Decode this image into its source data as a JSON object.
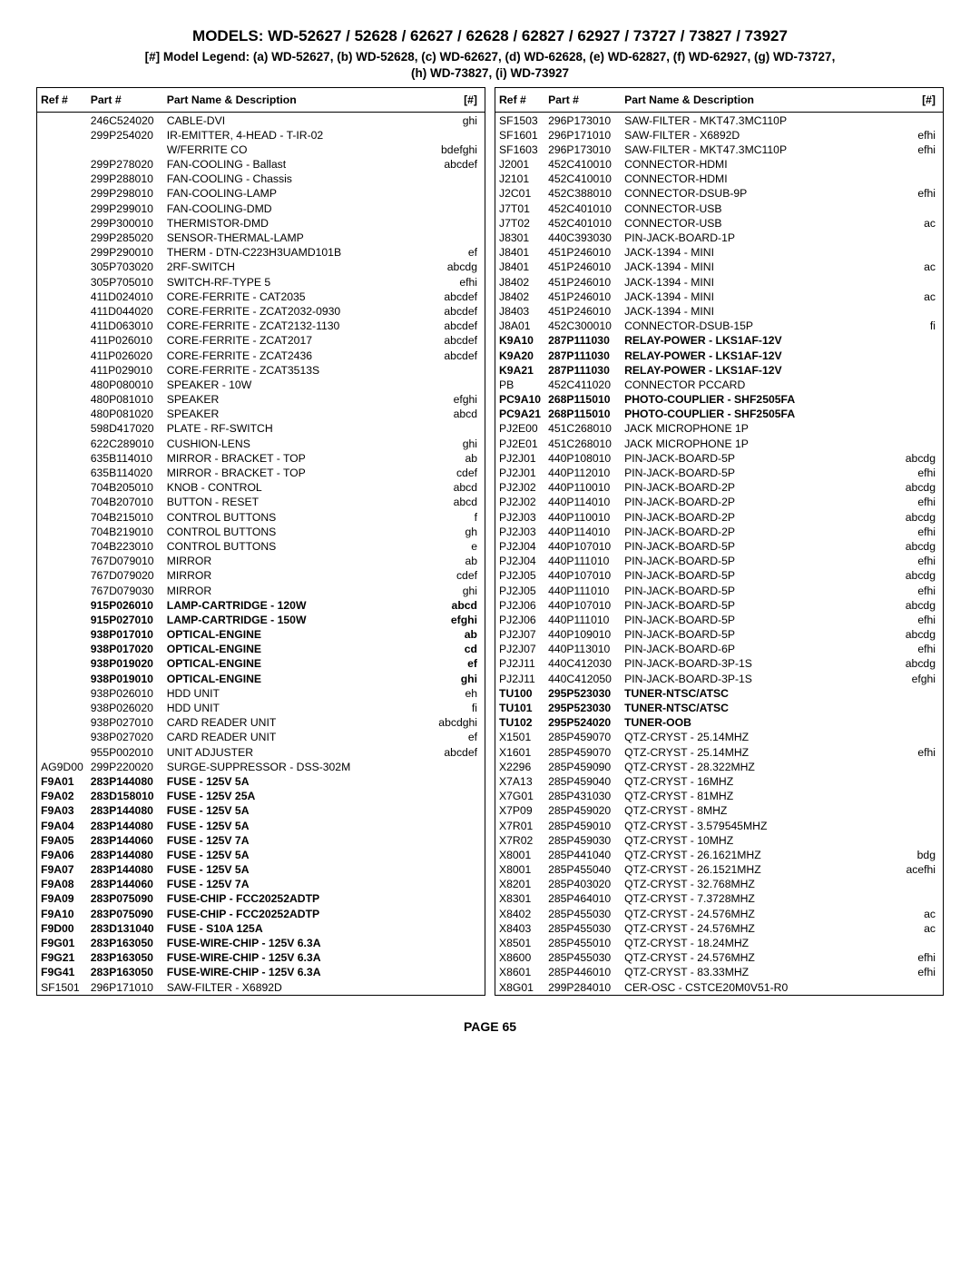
{
  "title": "MODELS: WD-52627 / 52628 / 62627 / 62628 / 62827 / 62927 / 73727 / 73827 / 73927",
  "legend_line1": "[#] Model Legend:  (a) WD-52627, (b) WD-52628, (c) WD-62627, (d) WD-62628, (e) WD-62827, (f) WD-62927, (g) WD-73727,",
  "legend_line2": "(h) WD-73827, (i) WD-73927",
  "headers": {
    "ref": "Ref #",
    "part": "Part #",
    "desc": "Part Name & Description",
    "tag": "[#]"
  },
  "footer": "PAGE 65",
  "left_rows": [
    {
      "ref": "",
      "part": "246C524020",
      "desc": "CABLE-DVI",
      "tag": "ghi"
    },
    {
      "ref": "",
      "part": "299P254020",
      "desc": "IR-EMITTER, 4-HEAD - T-IR-02",
      "tag": ""
    },
    {
      "ref": "",
      "part": "",
      "desc": "W/FERRITE CO",
      "tag": "bdefghi"
    },
    {
      "ref": "",
      "part": "299P278020",
      "desc": "FAN-COOLING - Ballast",
      "tag": "abcdef"
    },
    {
      "ref": "",
      "part": "299P288010",
      "desc": "FAN-COOLING - Chassis",
      "tag": ""
    },
    {
      "ref": "",
      "part": "299P298010",
      "desc": "FAN-COOLING-LAMP",
      "tag": ""
    },
    {
      "ref": "",
      "part": "299P299010",
      "desc": "FAN-COOLING-DMD",
      "tag": ""
    },
    {
      "ref": "",
      "part": "299P300010",
      "desc": "THERMISTOR-DMD",
      "tag": ""
    },
    {
      "ref": "",
      "part": "299P285020",
      "desc": "SENSOR-THERMAL-LAMP",
      "tag": ""
    },
    {
      "ref": "",
      "part": "299P290010",
      "desc": "THERM - DTN-C223H3UAMD101B",
      "tag": "ef"
    },
    {
      "ref": "",
      "part": "305P703020",
      "desc": "2RF-SWITCH",
      "tag": "abcdg"
    },
    {
      "ref": "",
      "part": "305P705010",
      "desc": "SWITCH-RF-TYPE 5",
      "tag": "efhi"
    },
    {
      "ref": "",
      "part": "411D024010",
      "desc": "CORE-FERRITE - CAT2035",
      "tag": "abcdef"
    },
    {
      "ref": "",
      "part": "411D044020",
      "desc": "CORE-FERRITE - ZCAT2032-0930",
      "tag": "abcdef"
    },
    {
      "ref": "",
      "part": "411D063010",
      "desc": "CORE-FERRITE - ZCAT2132-1130",
      "tag": "abcdef"
    },
    {
      "ref": "",
      "part": "411P026010",
      "desc": "CORE-FERRITE - ZCAT2017",
      "tag": "abcdef"
    },
    {
      "ref": "",
      "part": "411P026020",
      "desc": "CORE-FERRITE - ZCAT2436",
      "tag": "abcdef"
    },
    {
      "ref": "",
      "part": "411P029010",
      "desc": "CORE-FERRITE - ZCAT3513S",
      "tag": ""
    },
    {
      "ref": "",
      "part": "480P080010",
      "desc": "SPEAKER - 10W",
      "tag": ""
    },
    {
      "ref": "",
      "part": "480P081010",
      "desc": "SPEAKER",
      "tag": "efghi"
    },
    {
      "ref": "",
      "part": "480P081020",
      "desc": "SPEAKER",
      "tag": "abcd"
    },
    {
      "ref": "",
      "part": "598D417020",
      "desc": "PLATE - RF-SWITCH",
      "tag": ""
    },
    {
      "ref": "",
      "part": "622C289010",
      "desc": "CUSHION-LENS",
      "tag": "ghi"
    },
    {
      "ref": "",
      "part": "635B114010",
      "desc": "MIRROR - BRACKET - TOP",
      "tag": "ab"
    },
    {
      "ref": "",
      "part": "635B114020",
      "desc": "MIRROR - BRACKET - TOP",
      "tag": "cdef"
    },
    {
      "ref": "",
      "part": "704B205010",
      "desc": "KNOB -  CONTROL",
      "tag": "abcd"
    },
    {
      "ref": "",
      "part": "704B207010",
      "desc": "BUTTON - RESET",
      "tag": "abcd"
    },
    {
      "ref": "",
      "part": "704B215010",
      "desc": "CONTROL BUTTONS",
      "tag": "f"
    },
    {
      "ref": "",
      "part": "704B219010",
      "desc": "CONTROL BUTTONS",
      "tag": "gh"
    },
    {
      "ref": "",
      "part": "704B223010",
      "desc": "CONTROL BUTTONS",
      "tag": "e"
    },
    {
      "ref": "",
      "part": "767D079010",
      "desc": "MIRROR",
      "tag": "ab"
    },
    {
      "ref": "",
      "part": "767D079020",
      "desc": "MIRROR",
      "tag": "cdef"
    },
    {
      "ref": "",
      "part": "767D079030",
      "desc": "MIRROR",
      "tag": "ghi"
    },
    {
      "ref": "",
      "part": "915P026010",
      "desc": "LAMP-CARTRIDGE - 120W",
      "tag": "abcd",
      "bold": true
    },
    {
      "ref": "",
      "part": "915P027010",
      "desc": "LAMP-CARTRIDGE - 150W",
      "tag": "efghi",
      "bold": true
    },
    {
      "ref": "",
      "part": "938P017010",
      "desc": "OPTICAL-ENGINE",
      "tag": "ab",
      "bold": true
    },
    {
      "ref": "",
      "part": "938P017020",
      "desc": "OPTICAL-ENGINE",
      "tag": "cd",
      "bold": true
    },
    {
      "ref": "",
      "part": "938P019020",
      "desc": "OPTICAL-ENGINE",
      "tag": "ef",
      "bold": true
    },
    {
      "ref": "",
      "part": "938P019010",
      "desc": "OPTICAL-ENGINE",
      "tag": "ghi",
      "bold": true
    },
    {
      "ref": "",
      "part": "938P026010",
      "desc": "HDD UNIT",
      "tag": "eh"
    },
    {
      "ref": "",
      "part": "938P026020",
      "desc": "HDD UNIT",
      "tag": "fi"
    },
    {
      "ref": "",
      "part": "938P027010",
      "desc": "CARD READER UNIT",
      "tag": "abcdghi"
    },
    {
      "ref": "",
      "part": "938P027020",
      "desc": "CARD READER UNIT",
      "tag": "ef"
    },
    {
      "ref": "",
      "part": "955P002010",
      "desc": "UNIT ADJUSTER",
      "tag": "abcdef"
    },
    {
      "ref": "AG9D00",
      "part": "299P220020",
      "desc": "SURGE-SUPPRESSOR - DSS-302M",
      "tag": ""
    },
    {
      "ref": "F9A01",
      "part": "283P144080",
      "desc": "FUSE - 125V 5A",
      "tag": "",
      "bold": true
    },
    {
      "ref": "F9A02",
      "part": "283D158010",
      "desc": "FUSE - 125V 25A",
      "tag": "",
      "bold": true
    },
    {
      "ref": "F9A03",
      "part": "283P144080",
      "desc": "FUSE - 125V 5A",
      "tag": "",
      "bold": true
    },
    {
      "ref": "F9A04",
      "part": "283P144080",
      "desc": "FUSE - 125V 5A",
      "tag": "",
      "bold": true
    },
    {
      "ref": "F9A05",
      "part": "283P144060",
      "desc": "FUSE - 125V 7A",
      "tag": "",
      "bold": true
    },
    {
      "ref": "F9A06",
      "part": "283P144080",
      "desc": "FUSE - 125V 5A",
      "tag": "",
      "bold": true
    },
    {
      "ref": "F9A07",
      "part": "283P144080",
      "desc": "FUSE - 125V 5A",
      "tag": "",
      "bold": true
    },
    {
      "ref": "F9A08",
      "part": "283P144060",
      "desc": "FUSE - 125V 7A",
      "tag": "",
      "bold": true
    },
    {
      "ref": "F9A09",
      "part": "283P075090",
      "desc": "FUSE-CHIP -  FCC20252ADTP",
      "tag": "",
      "bold": true
    },
    {
      "ref": "F9A10",
      "part": "283P075090",
      "desc": "FUSE-CHIP -  FCC20252ADTP",
      "tag": "",
      "bold": true
    },
    {
      "ref": "F9D00",
      "part": "283D131040",
      "desc": "FUSE - S10A 125A",
      "tag": "",
      "bold": true
    },
    {
      "ref": "F9G01",
      "part": "283P163050",
      "desc": "FUSE-WIRE-CHIP - 125V 6.3A",
      "tag": "",
      "bold": true
    },
    {
      "ref": "F9G21",
      "part": "283P163050",
      "desc": "FUSE-WIRE-CHIP - 125V 6.3A",
      "tag": "",
      "bold": true
    },
    {
      "ref": "F9G41",
      "part": "283P163050",
      "desc": "FUSE-WIRE-CHIP - 125V 6.3A",
      "tag": "",
      "bold": true
    },
    {
      "ref": "SF1501",
      "part": "296P171010",
      "desc": "SAW-FILTER - X6892D",
      "tag": ""
    }
  ],
  "right_rows": [
    {
      "ref": "SF1503",
      "part": "296P173010",
      "desc": "SAW-FILTER - MKT47.3MC110P",
      "tag": ""
    },
    {
      "ref": "SF1601",
      "part": "296P171010",
      "desc": "SAW-FILTER - X6892D",
      "tag": "efhi"
    },
    {
      "ref": "SF1603",
      "part": "296P173010",
      "desc": "SAW-FILTER - MKT47.3MC110P",
      "tag": "efhi"
    },
    {
      "ref": "J2001",
      "part": "452C410010",
      "desc": "CONNECTOR-HDMI",
      "tag": ""
    },
    {
      "ref": "J2101",
      "part": "452C410010",
      "desc": "CONNECTOR-HDMI",
      "tag": ""
    },
    {
      "ref": "J2C01",
      "part": "452C388010",
      "desc": "CONNECTOR-DSUB-9P",
      "tag": "efhi"
    },
    {
      "ref": "J7T01",
      "part": "452C401010",
      "desc": "CONNECTOR-USB",
      "tag": ""
    },
    {
      "ref": "J7T02",
      "part": "452C401010",
      "desc": "CONNECTOR-USB",
      "tag": "ac"
    },
    {
      "ref": "J8301",
      "part": "440C393030",
      "desc": "PIN-JACK-BOARD-1P",
      "tag": ""
    },
    {
      "ref": "J8401",
      "part": "451P246010",
      "desc": "JACK-1394 - MINI",
      "tag": ""
    },
    {
      "ref": "J8401",
      "part": "451P246010",
      "desc": "JACK-1394 - MINI",
      "tag": "ac"
    },
    {
      "ref": "J8402",
      "part": "451P246010",
      "desc": "JACK-1394 - MINI",
      "tag": ""
    },
    {
      "ref": "J8402",
      "part": "451P246010",
      "desc": "JACK-1394 - MINI",
      "tag": "ac"
    },
    {
      "ref": "J8403",
      "part": "451P246010",
      "desc": "JACK-1394 - MINI",
      "tag": ""
    },
    {
      "ref": "J8A01",
      "part": "452C300010",
      "desc": "CONNECTOR-DSUB-15P",
      "tag": "fi"
    },
    {
      "ref": "K9A10",
      "part": "287P111030",
      "desc": "RELAY-POWER - LKS1AF-12V",
      "tag": "",
      "bold": true
    },
    {
      "ref": "K9A20",
      "part": "287P111030",
      "desc": "RELAY-POWER - LKS1AF-12V",
      "tag": "",
      "bold": true
    },
    {
      "ref": "K9A21",
      "part": "287P111030",
      "desc": "RELAY-POWER - LKS1AF-12V",
      "tag": "",
      "bold": true
    },
    {
      "ref": "PB",
      "part": "452C411020",
      "desc": "CONNECTOR PCCARD",
      "tag": ""
    },
    {
      "ref": "PC9A10",
      "part": "268P115010",
      "desc": "PHOTO-COUPLIER - SHF2505FA",
      "tag": "",
      "bold": true
    },
    {
      "ref": "PC9A21",
      "part": "268P115010",
      "desc": "PHOTO-COUPLIER - SHF2505FA",
      "tag": "",
      "bold": true
    },
    {
      "ref": "PJ2E00",
      "part": "451C268010",
      "desc": "JACK MICROPHONE 1P",
      "tag": ""
    },
    {
      "ref": "PJ2E01",
      "part": "451C268010",
      "desc": "JACK MICROPHONE 1P",
      "tag": ""
    },
    {
      "ref": "PJ2J01",
      "part": "440P108010",
      "desc": "PIN-JACK-BOARD-5P",
      "tag": "abcdg"
    },
    {
      "ref": "PJ2J01",
      "part": "440P112010",
      "desc": "PIN-JACK-BOARD-5P",
      "tag": "efhi"
    },
    {
      "ref": "PJ2J02",
      "part": "440P110010",
      "desc": "PIN-JACK-BOARD-2P",
      "tag": "abcdg"
    },
    {
      "ref": "PJ2J02",
      "part": "440P114010",
      "desc": "PIN-JACK-BOARD-2P",
      "tag": "efhi"
    },
    {
      "ref": "PJ2J03",
      "part": "440P110010",
      "desc": "PIN-JACK-BOARD-2P",
      "tag": "abcdg"
    },
    {
      "ref": "PJ2J03",
      "part": "440P114010",
      "desc": "PIN-JACK-BOARD-2P",
      "tag": "efhi"
    },
    {
      "ref": "PJ2J04",
      "part": "440P107010",
      "desc": "PIN-JACK-BOARD-5P",
      "tag": "abcdg"
    },
    {
      "ref": "PJ2J04",
      "part": "440P111010",
      "desc": "PIN-JACK-BOARD-5P",
      "tag": "efhi"
    },
    {
      "ref": "PJ2J05",
      "part": "440P107010",
      "desc": "PIN-JACK-BOARD-5P",
      "tag": "abcdg"
    },
    {
      "ref": "PJ2J05",
      "part": "440P111010",
      "desc": "PIN-JACK-BOARD-5P",
      "tag": "efhi"
    },
    {
      "ref": "PJ2J06",
      "part": "440P107010",
      "desc": "PIN-JACK-BOARD-5P",
      "tag": "abcdg"
    },
    {
      "ref": "PJ2J06",
      "part": "440P111010",
      "desc": "PIN-JACK-BOARD-5P",
      "tag": "efhi"
    },
    {
      "ref": "PJ2J07",
      "part": "440P109010",
      "desc": "PIN-JACK-BOARD-5P",
      "tag": "abcdg"
    },
    {
      "ref": "PJ2J07",
      "part": "440P113010",
      "desc": "PIN-JACK-BOARD-6P",
      "tag": "efhi"
    },
    {
      "ref": "PJ2J11",
      "part": "440C412030",
      "desc": "PIN-JACK-BOARD-3P-1S",
      "tag": "abcdg"
    },
    {
      "ref": "PJ2J11",
      "part": "440C412050",
      "desc": "PIN-JACK-BOARD-3P-1S",
      "tag": "efghi"
    },
    {
      "ref": "TU100",
      "part": "295P523030",
      "desc": "TUNER-NTSC/ATSC",
      "tag": "",
      "bold": true
    },
    {
      "ref": "TU101",
      "part": "295P523030",
      "desc": "TUNER-NTSC/ATSC",
      "tag": "",
      "bold": true
    },
    {
      "ref": "TU102",
      "part": "295P524020",
      "desc": "TUNER-OOB",
      "tag": "",
      "bold": true
    },
    {
      "ref": "X1501",
      "part": "285P459070",
      "desc": "QTZ-CRYST -  25.14MHZ",
      "tag": ""
    },
    {
      "ref": "X1601",
      "part": "285P459070",
      "desc": "QTZ-CRYST -  25.14MHZ",
      "tag": "efhi"
    },
    {
      "ref": "X2296",
      "part": "285P459090",
      "desc": "QTZ-CRYST -  28.322MHZ",
      "tag": ""
    },
    {
      "ref": "X7A13",
      "part": "285P459040",
      "desc": "QTZ-CRYST -  16MHZ",
      "tag": ""
    },
    {
      "ref": "X7G01",
      "part": "285P431030",
      "desc": "QTZ-CRYST -  81MHZ",
      "tag": ""
    },
    {
      "ref": "X7P09",
      "part": "285P459020",
      "desc": "QTZ-CRYST -  8MHZ",
      "tag": ""
    },
    {
      "ref": "X7R01",
      "part": "285P459010",
      "desc": "QTZ-CRYST -  3.579545MHZ",
      "tag": ""
    },
    {
      "ref": "X7R02",
      "part": "285P459030",
      "desc": "QTZ-CRYST -  10MHZ",
      "tag": ""
    },
    {
      "ref": "X8001",
      "part": "285P441040",
      "desc": "QTZ-CRYST - 26.1621MHZ",
      "tag": "bdg"
    },
    {
      "ref": "X8001",
      "part": "285P455040",
      "desc": "QTZ-CRYST -  26.1521MHZ",
      "tag": "acefhi"
    },
    {
      "ref": "X8201",
      "part": "285P403020",
      "desc": "QTZ-CRYST -  32.768MHZ",
      "tag": ""
    },
    {
      "ref": "X8301",
      "part": "285P464010",
      "desc": "QTZ-CRYST -  7.3728MHZ",
      "tag": ""
    },
    {
      "ref": "X8402",
      "part": "285P455030",
      "desc": "QTZ-CRYST -  24.576MHZ",
      "tag": "ac"
    },
    {
      "ref": "X8403",
      "part": "285P455030",
      "desc": "QTZ-CRYST -  24.576MHZ",
      "tag": "ac"
    },
    {
      "ref": "X8501",
      "part": "285P455010",
      "desc": "QTZ-CRYST -  18.24MHZ",
      "tag": ""
    },
    {
      "ref": "X8600",
      "part": "285P455030",
      "desc": "QTZ-CRYST -  24.576MHZ",
      "tag": "efhi"
    },
    {
      "ref": "X8601",
      "part": "285P446010",
      "desc": "QTZ-CRYST - 83.33MHZ",
      "tag": "efhi"
    },
    {
      "ref": "X8G01",
      "part": "299P284010",
      "desc": "CER-OSC - CSTCE20M0V51-R0",
      "tag": ""
    }
  ]
}
